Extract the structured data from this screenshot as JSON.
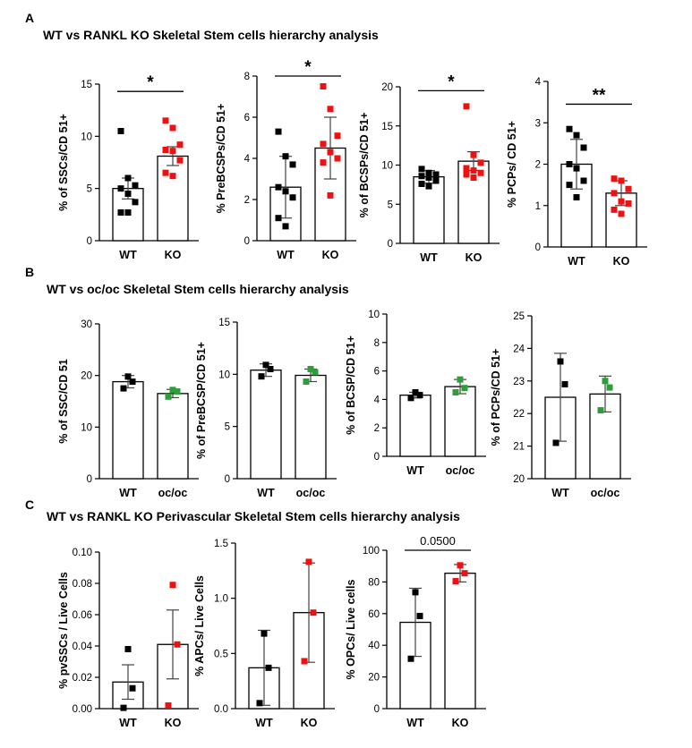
{
  "panels": [
    {
      "letter": "A",
      "title": "WT vs RANKL KO Skeletal Stem cells hierarchy analysis"
    },
    {
      "letter": "B",
      "title": "WT vs oc/oc  Skeletal Stem cells hierarchy analysis"
    },
    {
      "letter": "C",
      "title": "WT vs RANKL KO Perivascular Skeletal Stem cells hierarchy analysis"
    }
  ],
  "colors": {
    "wt_point": "#000000",
    "ko_point": "#ee1111",
    "ococ_point": "#2e9e3a",
    "bar_fill": "#ffffff",
    "axis": "#000000",
    "errbar": "#444444"
  },
  "chart_data": [
    {
      "id": "A1",
      "type": "bar",
      "ylabel": "% of SSCs/CD 51+",
      "categories": [
        "WT",
        "KO"
      ],
      "ylim": [
        0,
        15
      ],
      "yticks": [
        0,
        5,
        10,
        15
      ],
      "ytick_labels": [
        "0",
        "5",
        "10",
        "15"
      ],
      "series": [
        {
          "name": "WT",
          "mean": 5.0,
          "sd": 1.0,
          "points": [
            10.5,
            6.0,
            5.3,
            5.0,
            4.5,
            3.7,
            2.7,
            2.7
          ],
          "point_color": "wt"
        },
        {
          "name": "KO",
          "mean": 8.1,
          "sd": 0.9,
          "points": [
            11.5,
            10.8,
            9.2,
            8.7,
            8.6,
            7.7,
            6.5,
            6.2
          ],
          "point_color": "ko"
        }
      ],
      "annotation": {
        "text": "*",
        "from": 0,
        "to": 1,
        "y": 14.3
      }
    },
    {
      "id": "A2",
      "type": "bar",
      "ylabel": "% PreBCSPs/CD 51+",
      "categories": [
        "WT",
        "KO"
      ],
      "ylim": [
        0,
        8
      ],
      "yticks": [
        0,
        2,
        4,
        6,
        8
      ],
      "ytick_labels": [
        "0",
        "2",
        "4",
        "6",
        "8"
      ],
      "series": [
        {
          "name": "WT",
          "mean": 2.6,
          "sd": 1.5,
          "points": [
            5.3,
            4.1,
            3.7,
            2.6,
            2.4,
            2.1,
            1.1,
            0.7
          ],
          "point_color": "wt"
        },
        {
          "name": "KO",
          "mean": 4.5,
          "sd": 1.5,
          "points": [
            7.5,
            6.4,
            5.1,
            4.7,
            4.3,
            4.0,
            3.8,
            2.2
          ],
          "point_color": "ko"
        }
      ],
      "annotation": {
        "text": "*",
        "from": 0,
        "to": 1,
        "y": 8.0
      }
    },
    {
      "id": "A3",
      "type": "bar",
      "ylabel": "% of BCSPs/CD 51+",
      "categories": [
        "WT",
        "KO"
      ],
      "ylim": [
        0,
        20
      ],
      "yticks": [
        0,
        5,
        10,
        15,
        20
      ],
      "ytick_labels": [
        "0",
        "5",
        "10",
        "15",
        "20"
      ],
      "series": [
        {
          "name": "WT",
          "mean": 8.5,
          "sd": 0.8,
          "points": [
            9.5,
            9.0,
            8.8,
            8.6,
            8.4,
            8.0,
            7.6,
            7.3
          ],
          "point_color": "wt"
        },
        {
          "name": "KO",
          "mean": 10.5,
          "sd": 1.2,
          "points": [
            17.5,
            11.3,
            10.3,
            9.6,
            9.3,
            9.0,
            8.8,
            8.4
          ],
          "point_color": "ko"
        }
      ],
      "annotation": {
        "text": "*",
        "from": 0,
        "to": 1,
        "y": 19.5
      }
    },
    {
      "id": "A4",
      "type": "bar",
      "ylabel": "% PCPs/ CD 51+",
      "categories": [
        "WT",
        "KO"
      ],
      "ylim": [
        0,
        4
      ],
      "yticks": [
        0,
        1,
        2,
        3,
        4
      ],
      "ytick_labels": [
        "0",
        "1",
        "2",
        "3",
        "4"
      ],
      "series": [
        {
          "name": "WT",
          "mean": 2.0,
          "sd": 0.6,
          "points": [
            2.85,
            2.7,
            2.4,
            2.0,
            1.9,
            1.6,
            1.5,
            1.2
          ],
          "point_color": "wt"
        },
        {
          "name": "KO",
          "mean": 1.3,
          "sd": 0.3,
          "points": [
            1.65,
            1.6,
            1.4,
            1.3,
            1.1,
            1.05,
            0.9,
            0.8
          ],
          "point_color": "ko"
        }
      ],
      "annotation": {
        "text": "**",
        "from": 0,
        "to": 1,
        "y": 3.45
      }
    },
    {
      "id": "B1",
      "type": "bar",
      "ylabel": "% of SSC/CD 51",
      "categories": [
        "WT",
        "oc/oc"
      ],
      "ylim": [
        0,
        30
      ],
      "yticks": [
        0,
        10,
        20,
        30
      ],
      "ytick_labels": [
        "0",
        "10",
        "20",
        "30"
      ],
      "series": [
        {
          "name": "WT",
          "mean": 18.8,
          "sd": 1.2,
          "points": [
            19.8,
            18.8,
            17.5
          ],
          "point_color": "wt"
        },
        {
          "name": "oc/oc",
          "mean": 16.5,
          "sd": 0.8,
          "points": [
            17.2,
            16.9,
            15.9
          ],
          "point_color": "ococ"
        }
      ]
    },
    {
      "id": "B2",
      "type": "bar",
      "ylabel": "% of PreBCSP/CD 51+",
      "categories": [
        "WT",
        "oc/oc"
      ],
      "ylim": [
        0,
        15
      ],
      "yticks": [
        0,
        5,
        10,
        15
      ],
      "ytick_labels": [
        "0",
        "5",
        "10",
        "15"
      ],
      "series": [
        {
          "name": "WT",
          "mean": 10.4,
          "sd": 0.6,
          "points": [
            10.9,
            10.5,
            9.8
          ],
          "point_color": "wt"
        },
        {
          "name": "oc/oc",
          "mean": 9.9,
          "sd": 0.6,
          "points": [
            10.5,
            10.2,
            9.3
          ],
          "point_color": "ococ"
        }
      ]
    },
    {
      "id": "B3",
      "type": "bar",
      "ylabel": "% of BCSP/CD 51+",
      "categories": [
        "WT",
        "oc/oc"
      ],
      "ylim": [
        0,
        10
      ],
      "yticks": [
        0,
        2,
        4,
        6,
        8,
        10
      ],
      "ytick_labels": [
        "0",
        "2",
        "4",
        "6",
        "8",
        "10"
      ],
      "series": [
        {
          "name": "WT",
          "mean": 4.3,
          "sd": 0.2,
          "points": [
            4.5,
            4.3,
            4.1
          ],
          "point_color": "wt"
        },
        {
          "name": "oc/oc",
          "mean": 4.9,
          "sd": 0.5,
          "points": [
            5.4,
            4.8,
            4.5
          ],
          "point_color": "ococ"
        }
      ]
    },
    {
      "id": "B4",
      "type": "bar",
      "ylabel": "% of PCPs/CD 51+",
      "categories": [
        "WT",
        "oc/oc"
      ],
      "ylim": [
        20,
        25
      ],
      "yticks": [
        20,
        21,
        22,
        23,
        24,
        25
      ],
      "ytick_labels": [
        "20",
        "21",
        "22",
        "23",
        "24",
        "25"
      ],
      "series": [
        {
          "name": "WT",
          "mean": 22.5,
          "sd": 1.35,
          "points": [
            23.6,
            22.9,
            21.1
          ],
          "point_color": "wt"
        },
        {
          "name": "oc/oc",
          "mean": 22.6,
          "sd": 0.55,
          "points": [
            23.0,
            22.8,
            22.1
          ],
          "point_color": "ococ"
        }
      ]
    },
    {
      "id": "C1",
      "type": "bar",
      "ylabel": "% pvSSCs / Live Cells",
      "categories": [
        "WT",
        "KO"
      ],
      "ylim": [
        0,
        0.1
      ],
      "yticks": [
        0,
        0.02,
        0.04,
        0.06,
        0.08,
        0.1
      ],
      "ytick_labels": [
        "0.00",
        "0.02",
        "0.04",
        "0.06",
        "0.08",
        "0.10"
      ],
      "series": [
        {
          "name": "WT",
          "mean": 0.017,
          "sd": 0.011,
          "points": [
            0.038,
            0.013,
            0.0005
          ],
          "point_color": "wt"
        },
        {
          "name": "KO",
          "mean": 0.041,
          "sd": 0.022,
          "points": [
            0.079,
            0.041,
            0.002
          ],
          "point_color": "ko"
        }
      ]
    },
    {
      "id": "C2",
      "type": "bar",
      "ylabel": "% APCs/ Live Cells",
      "categories": [
        "WT",
        "KO"
      ],
      "ylim": [
        0,
        1.5
      ],
      "yticks": [
        0,
        0.5,
        1.0,
        1.5
      ],
      "ytick_labels": [
        "0.0",
        "0.5",
        "1.0",
        "1.5"
      ],
      "series": [
        {
          "name": "WT",
          "mean": 0.37,
          "sd": 0.34,
          "points": [
            0.68,
            0.37,
            0.05
          ],
          "point_color": "wt"
        },
        {
          "name": "KO",
          "mean": 0.87,
          "sd": 0.45,
          "points": [
            1.33,
            0.87,
            0.43
          ],
          "point_color": "ko"
        }
      ]
    },
    {
      "id": "C3",
      "type": "bar",
      "ylabel": "% OPCs/ Live cells",
      "categories": [
        "WT",
        "KO"
      ],
      "ylim": [
        0,
        100
      ],
      "yticks": [
        0,
        20,
        40,
        60,
        80,
        100
      ],
      "ytick_labels": [
        "0",
        "20",
        "40",
        "60",
        "80",
        "100"
      ],
      "series": [
        {
          "name": "WT",
          "mean": 54.5,
          "sd": 21.5,
          "points": [
            73.5,
            58.5,
            31.5
          ],
          "point_color": "wt"
        },
        {
          "name": "KO",
          "mean": 85.5,
          "sd": 5.5,
          "points": [
            90.5,
            85.5,
            80.5
          ],
          "point_color": "ko"
        }
      ],
      "annotation": {
        "text": "0.0500",
        "from": 0,
        "to": 1,
        "y": 100,
        "plain": true
      }
    }
  ]
}
